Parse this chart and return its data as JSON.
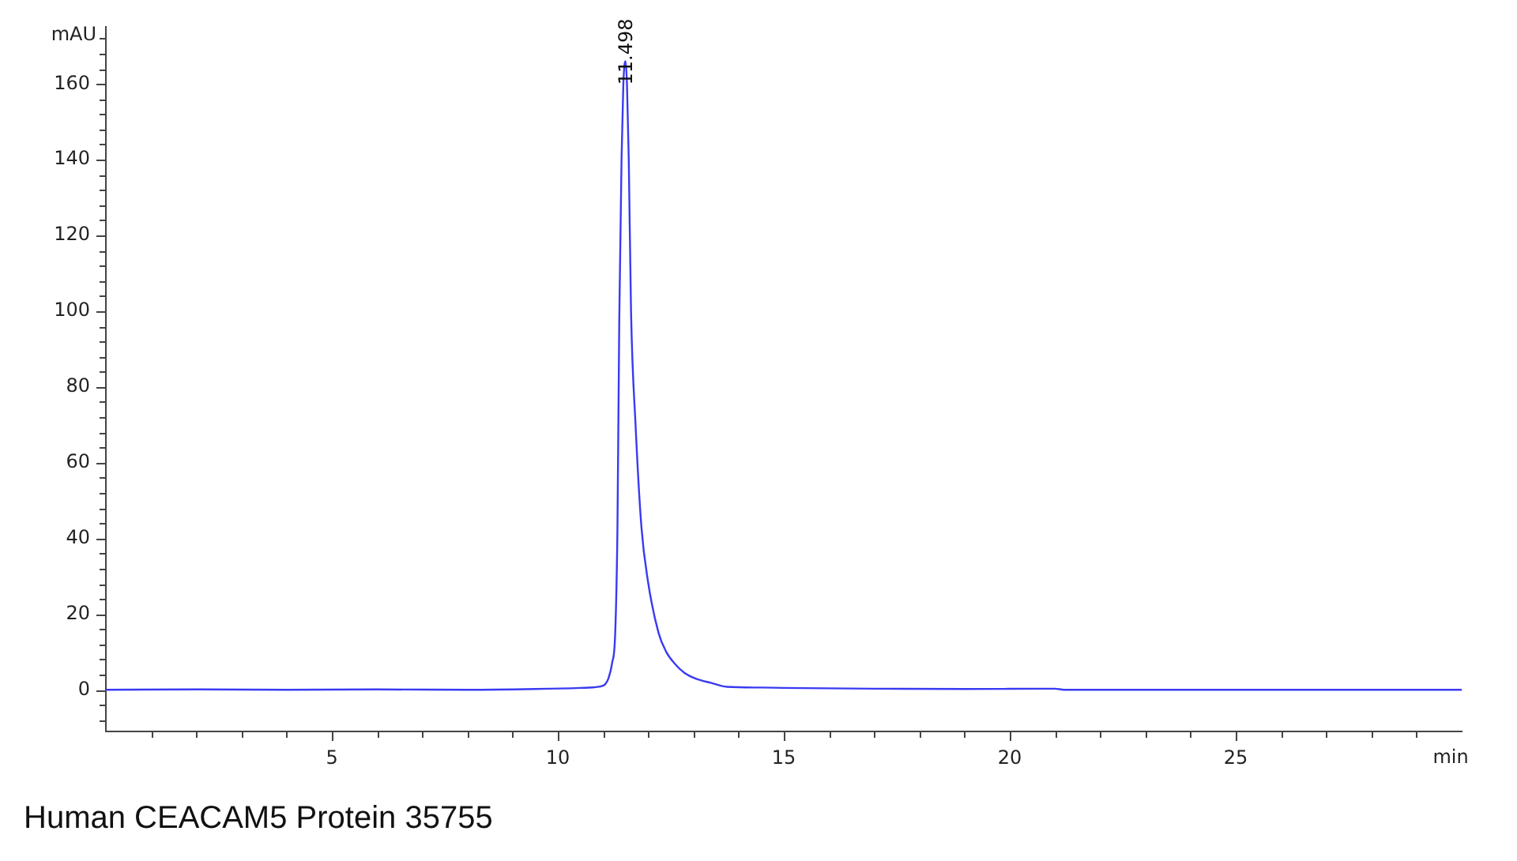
{
  "chart_data": {
    "type": "line",
    "xlabel": "min",
    "ylabel": "mAU",
    "annotations": [
      {
        "text": "11.498",
        "x": 11.498,
        "y": 166
      },
      "Human CEACAM5 Protein 35755"
    ],
    "x": [
      0,
      2,
      4,
      6,
      8,
      9.5,
      10.5,
      10.9,
      11.05,
      11.12,
      11.2,
      11.27,
      11.32,
      11.36,
      11.41,
      11.45,
      11.498,
      11.53,
      11.57,
      11.62,
      11.72,
      11.85,
      11.99,
      12.23,
      12.4,
      12.58,
      12.8,
      13.04,
      13.4,
      13.74,
      14.5,
      15,
      17,
      19,
      21,
      21.2,
      23,
      26,
      30
    ],
    "values": [
      0,
      0.1,
      0,
      0.1,
      0,
      0.2,
      0.5,
      0.8,
      1.5,
      3,
      7,
      15,
      43,
      98,
      140,
      160,
      166,
      160,
      140,
      100,
      70,
      43,
      29,
      15,
      10,
      7,
      4.5,
      3,
      1.8,
      0.8,
      0.6,
      0.5,
      0.3,
      0.2,
      0.3,
      0,
      0,
      0,
      0
    ],
    "color": "#3a3af2",
    "xlim": [
      0,
      30
    ],
    "ylim": [
      -11,
      175
    ],
    "xticks": [
      {
        "value": 1,
        "label": null
      },
      {
        "value": 2,
        "label": null
      },
      {
        "value": 3,
        "label": null
      },
      {
        "value": 4,
        "label": null
      },
      5,
      {
        "value": 6,
        "label": null
      },
      {
        "value": 7,
        "label": null
      },
      {
        "value": 8,
        "label": null
      },
      {
        "value": 9,
        "label": null
      },
      10,
      {
        "value": 11,
        "label": null
      },
      {
        "value": 12,
        "label": null
      },
      {
        "value": 13,
        "label": null
      },
      {
        "value": 14,
        "label": null
      },
      15,
      {
        "value": 16,
        "label": null
      },
      {
        "value": 17,
        "label": null
      },
      {
        "value": 18,
        "label": null
      },
      {
        "value": 19,
        "label": null
      },
      20,
      {
        "value": 21,
        "label": null
      },
      {
        "value": 22,
        "label": null
      },
      {
        "value": 23,
        "label": null
      },
      {
        "value": 24,
        "label": null
      },
      25,
      {
        "value": 26,
        "label": null
      },
      {
        "value": 27,
        "label": null
      },
      {
        "value": 28,
        "label": null
      },
      {
        "value": 29,
        "label": null
      }
    ],
    "yticks": [
      {
        "value": -8,
        "label": null
      },
      {
        "value": -4,
        "label": null
      },
      0,
      {
        "value": 4,
        "label": null
      },
      {
        "value": 8,
        "label": null
      },
      {
        "value": 12,
        "label": null
      },
      {
        "value": 16,
        "label": null
      },
      20,
      {
        "value": 24,
        "label": null
      },
      {
        "value": 28,
        "label": null
      },
      {
        "value": 32,
        "label": null
      },
      {
        "value": 36,
        "label": null
      },
      40,
      {
        "value": 44,
        "label": null
      },
      {
        "value": 48,
        "label": null
      },
      {
        "value": 52,
        "label": null
      },
      {
        "value": 56,
        "label": null
      },
      60,
      {
        "value": 64,
        "label": null
      },
      {
        "value": 68,
        "label": null
      },
      {
        "value": 72,
        "label": null
      },
      {
        "value": 76,
        "label": null
      },
      80,
      {
        "value": 84,
        "label": null
      },
      {
        "value": 88,
        "label": null
      },
      {
        "value": 92,
        "label": null
      },
      {
        "value": 96,
        "label": null
      },
      100,
      {
        "value": 104,
        "label": null
      },
      {
        "value": 108,
        "label": null
      },
      {
        "value": 112,
        "label": null
      },
      {
        "value": 116,
        "label": null
      },
      120,
      {
        "value": 124,
        "label": null
      },
      {
        "value": 128,
        "label": null
      },
      {
        "value": 132,
        "label": null
      },
      {
        "value": 136,
        "label": null
      },
      140,
      {
        "value": 144,
        "label": null
      },
      {
        "value": 148,
        "label": null
      },
      {
        "value": 152,
        "label": null
      },
      {
        "value": 156,
        "label": null
      },
      160,
      {
        "value": 164,
        "label": null
      },
      {
        "value": 168,
        "label": null
      },
      {
        "value": 172,
        "label": null
      }
    ]
  }
}
